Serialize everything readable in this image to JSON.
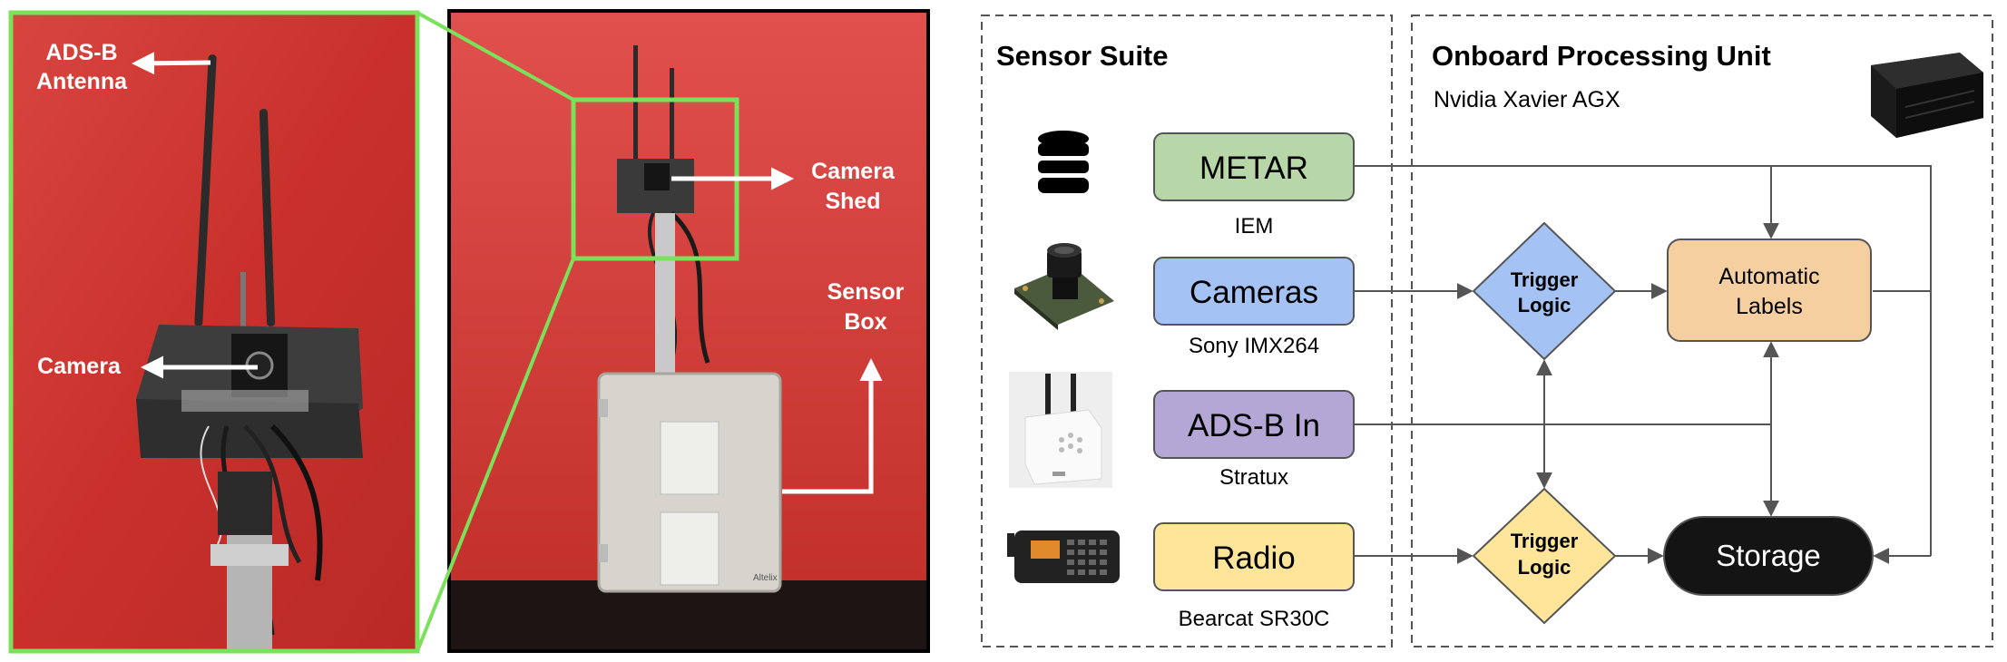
{
  "photos": {
    "closeup_labels": {
      "antenna": [
        "ADS-B",
        "Antenna"
      ],
      "camera": "Camera"
    },
    "full_labels": {
      "shed": [
        "Camera",
        "Shed"
      ],
      "box": [
        "Sensor",
        "Box"
      ]
    },
    "enclosure_brand": "Altelix"
  },
  "diagram": {
    "sensor_suite": {
      "title": "Sensor Suite",
      "sensors": [
        {
          "label": "METAR",
          "caption": "IEM",
          "icon": "database-icon",
          "color": "#b7d7a8"
        },
        {
          "label": "Cameras",
          "caption": "Sony IMX264",
          "icon": "camera-module-icon",
          "color": "#a4c2f4"
        },
        {
          "label": "ADS-B In",
          "caption": "Stratux",
          "icon": "stratux-receiver-icon",
          "color": "#b4a7d6"
        },
        {
          "label": "Radio",
          "caption": "Bearcat SR30C",
          "icon": "radio-scanner-icon",
          "color": "#ffe599"
        }
      ]
    },
    "processing_unit": {
      "title": "Onboard Processing Unit",
      "subtitle": "Nvidia Xavier AGX",
      "icon": "xavier-module-icon",
      "trigger_top": {
        "line1": "Trigger",
        "line2": "Logic",
        "color": "#a4c2f4"
      },
      "trigger_bottom": {
        "line1": "Trigger",
        "line2": "Logic",
        "color": "#ffe599"
      },
      "labels_box": {
        "line1": "Automatic",
        "line2": "Labels",
        "color": "#f6cfa0"
      },
      "storage": {
        "label": "Storage",
        "color": "#141414"
      }
    }
  }
}
